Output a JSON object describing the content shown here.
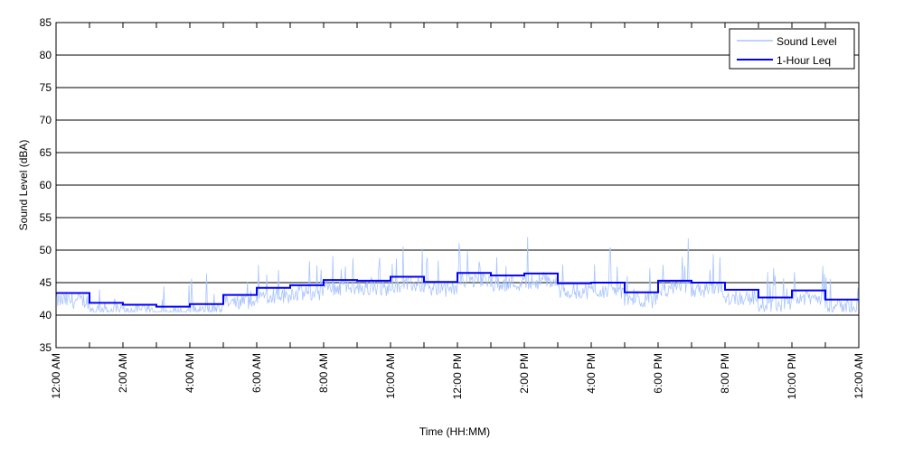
{
  "chart_data": {
    "type": "line",
    "title": "",
    "xlabel": "Time (HH:MM)",
    "ylabel": "Sound Level (dBA)",
    "ylim": [
      35,
      85
    ],
    "yticks": [
      35,
      40,
      45,
      50,
      55,
      60,
      65,
      70,
      75,
      80,
      85
    ],
    "xlim_hours": [
      0,
      24
    ],
    "xtick_labels": [
      "12:00 AM",
      "2:00 AM",
      "4:00 AM",
      "6:00 AM",
      "8:00 AM",
      "10:00 AM",
      "12:00 PM",
      "2:00 PM",
      "4:00 PM",
      "6:00 PM",
      "8:00 PM",
      "10:00 PM",
      "12:00 AM"
    ],
    "grid": "horizontal",
    "legend": {
      "placement": "top-right",
      "entries": [
        "Sound Level",
        "1-Hour Leq"
      ]
    },
    "series": [
      {
        "name": "Sound Level",
        "color": "#a8c4ff",
        "note": "continuous 1-min readings fluctuating around hourly Leq with peaks up to ~58 dBA"
      },
      {
        "name": "1-Hour Leq",
        "color": "#0000ff",
        "hours": [
          0,
          1,
          2,
          3,
          4,
          5,
          6,
          7,
          8,
          9,
          10,
          11,
          12,
          13,
          14,
          15,
          16,
          17,
          18,
          19,
          20,
          21,
          22,
          23
        ],
        "values": [
          43.4,
          41.9,
          41.6,
          41.3,
          41.7,
          43.1,
          44.2,
          44.6,
          45.4,
          45.3,
          45.9,
          45.1,
          46.5,
          46.1,
          46.4,
          44.9,
          45.0,
          43.5,
          45.3,
          45.0,
          43.9,
          42.7,
          43.8,
          42.4
        ]
      }
    ]
  }
}
